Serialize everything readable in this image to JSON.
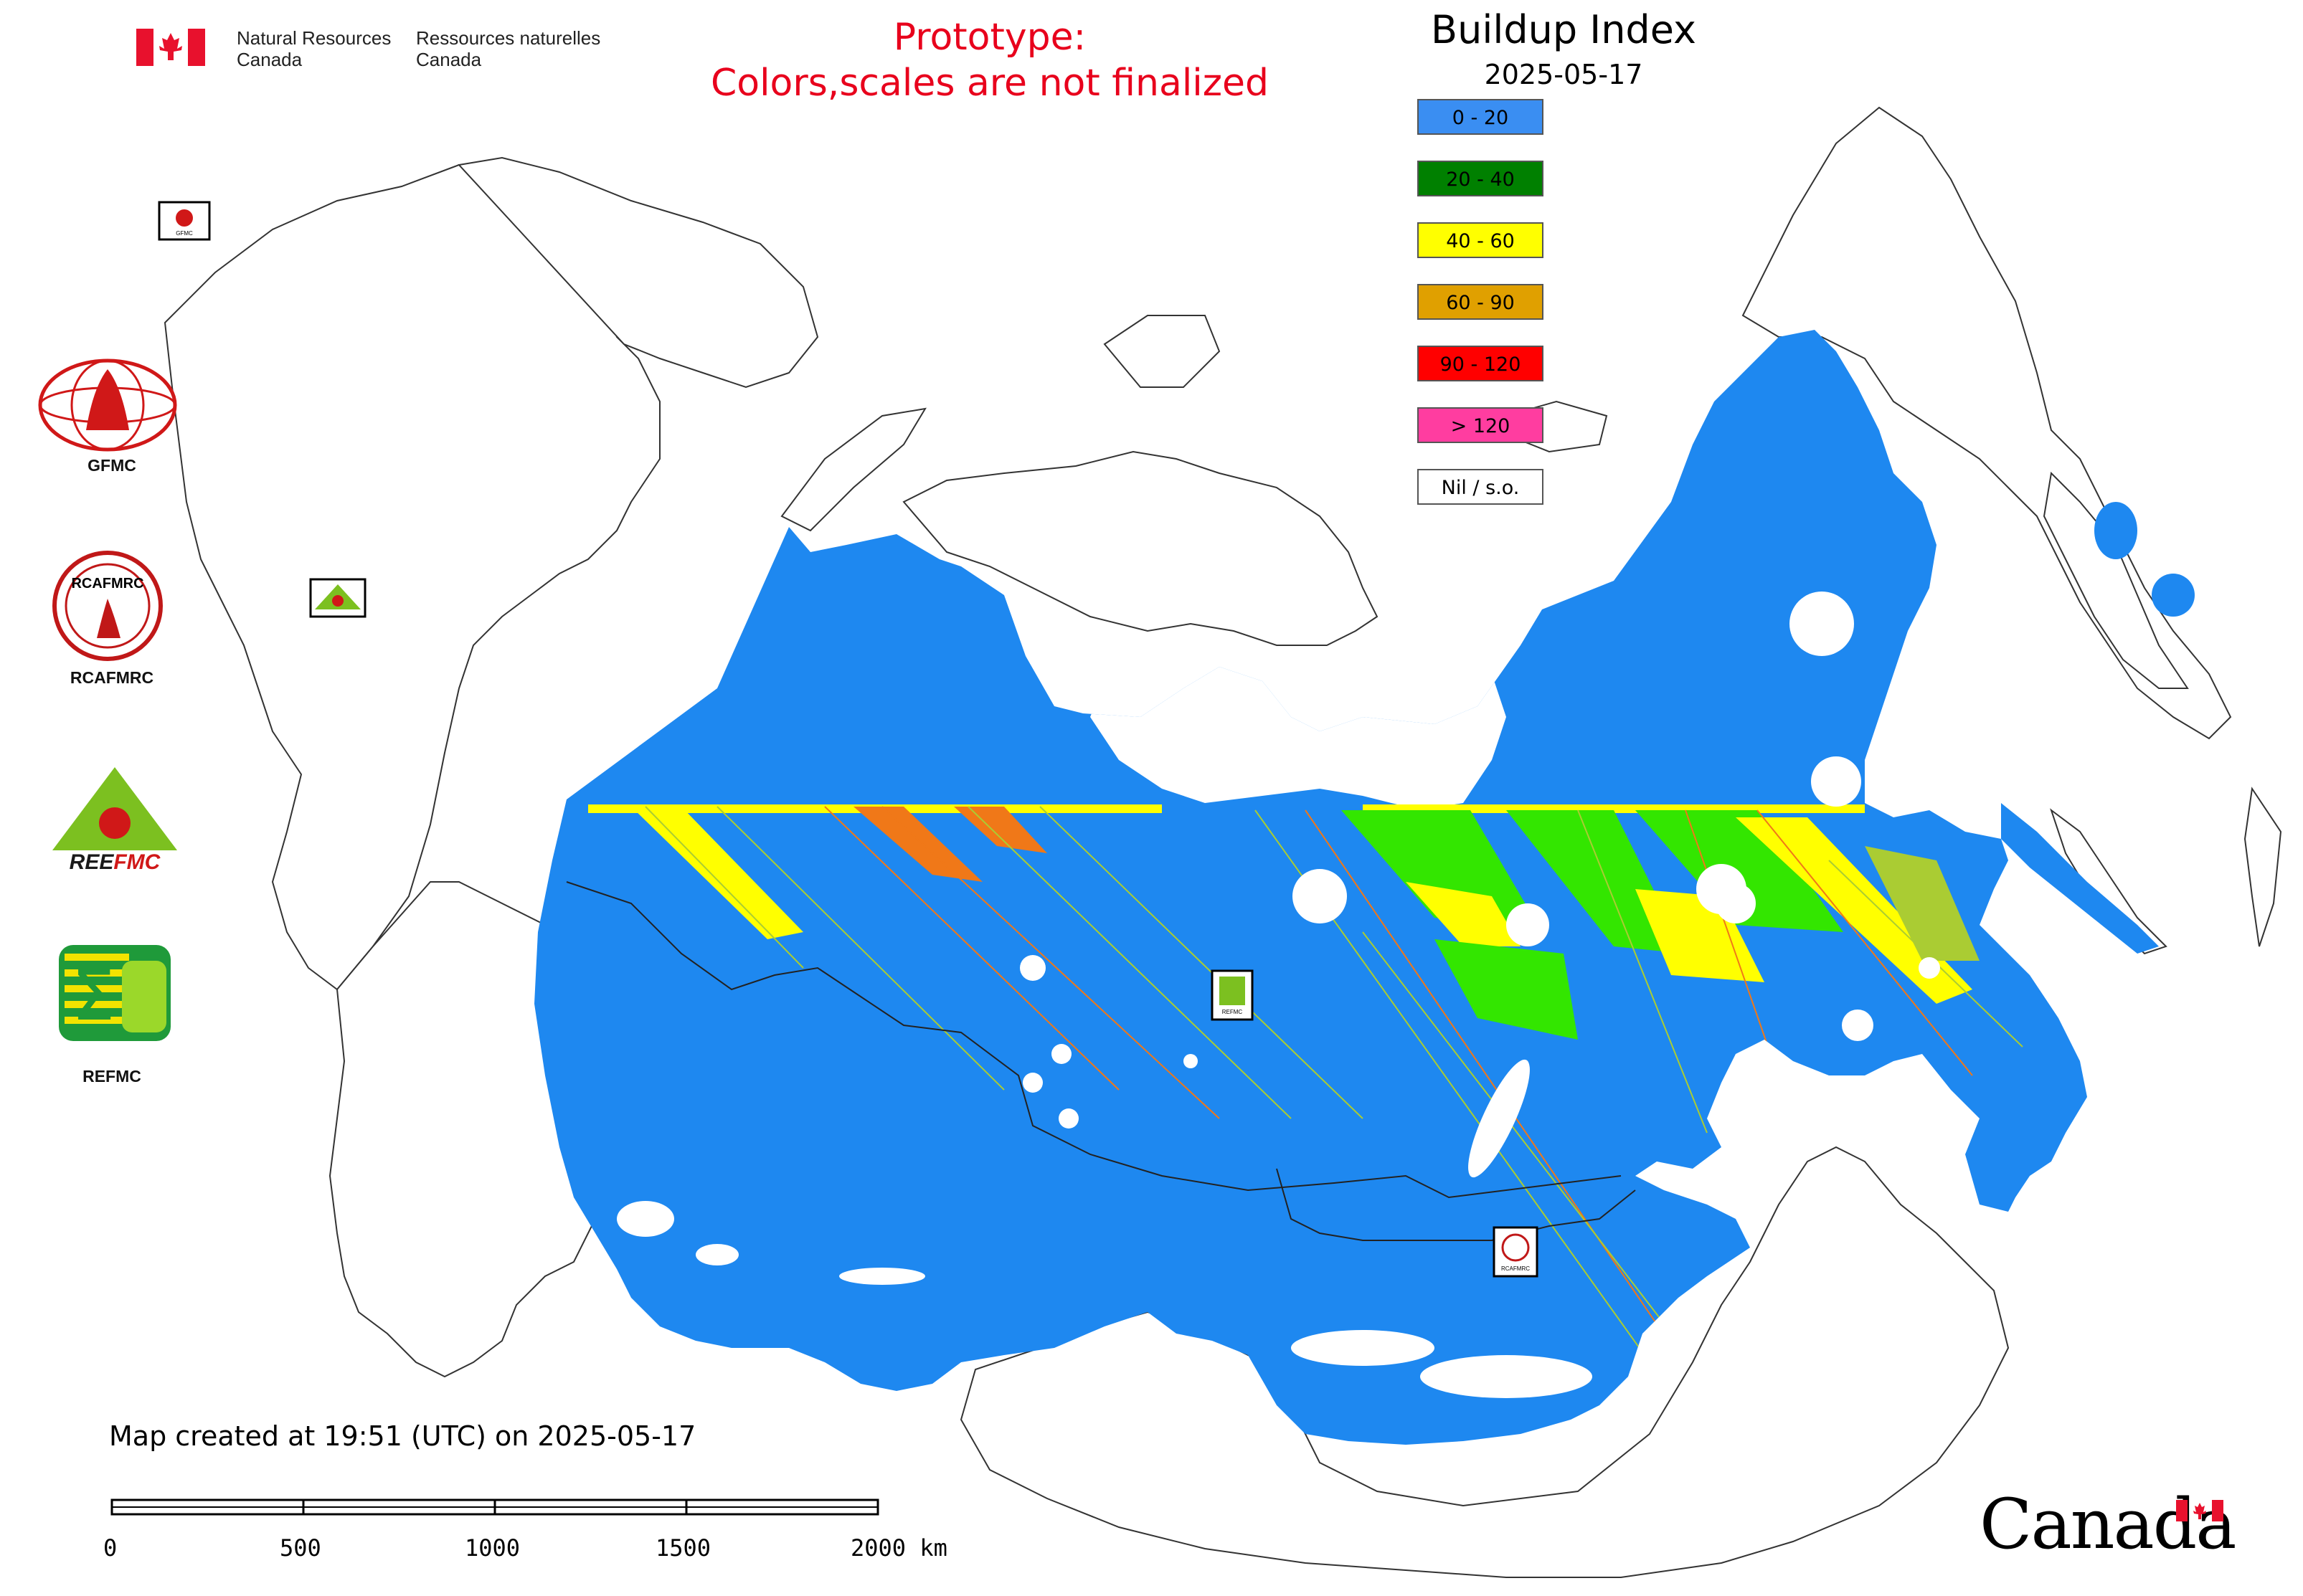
{
  "header": {
    "agency_en_line1": "Natural Resources",
    "agency_en_line2": "Canada",
    "agency_fr_line1": "Ressources naturelles",
    "agency_fr_line2": "Canada",
    "notice_line1": "Prototype:",
    "notice_line2": "Colors,scales are not finalized"
  },
  "legend": {
    "title": "Buildup Index",
    "date": "2025-05-17",
    "items": [
      {
        "label": "0 - 20",
        "color": "#3a8ef2"
      },
      {
        "label": "20 - 40",
        "color": "#008000"
      },
      {
        "label": "40 - 60",
        "color": "#ffff00"
      },
      {
        "label": "60 - 90",
        "color": "#e0a000"
      },
      {
        "label": "90 - 120",
        "color": "#ff0000"
      },
      {
        "label": "> 120",
        "color": "#ff3da0"
      },
      {
        "label": "Nil / s.o.",
        "color": "#ffffff"
      }
    ]
  },
  "map": {
    "fill_colors": {
      "base": "#1e88f0",
      "band_yellow": "#ffff00",
      "band_green": "#33e600",
      "band_orange": "#f07818",
      "band_olive": "#aacc33"
    },
    "center_markers": [
      "GFMC",
      "REEFMC",
      "REFMC",
      "RCAFMRC"
    ]
  },
  "logos": [
    {
      "label": "GFMC",
      "icon": "gfmc-logo-icon"
    },
    {
      "label": "RCAFMRC",
      "icon": "rcafmrc-logo-icon"
    },
    {
      "label": "",
      "icon": "reefmc-logo-icon",
      "wordmark": "REEFMC"
    },
    {
      "label": "REFMC",
      "icon": "refmc-logo-icon"
    }
  ],
  "footer": {
    "created": "Map created at 19:51 (UTC) on 2025-05-17",
    "scale": [
      "0",
      "500",
      "1000",
      "1500",
      "2000 km"
    ],
    "wordmark": "Canada"
  }
}
